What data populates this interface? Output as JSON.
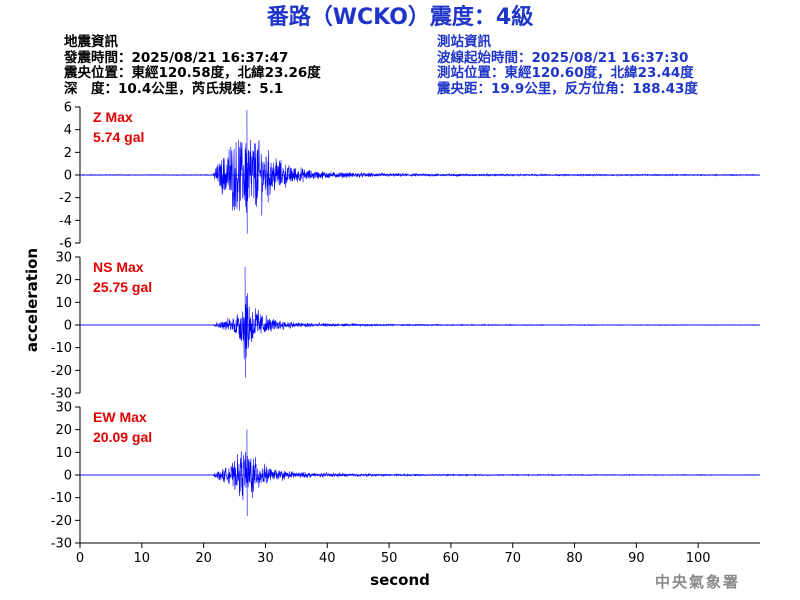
{
  "title": "番路（WCKO）震度：4級",
  "quake_info": {
    "heading": "地震資訊",
    "origin_time": "發震時間：2025/08/21 16:37:47",
    "epicenter": "震央位置：東經120.58度，北緯23.26度",
    "depth_magnitude": "深　度：10.4公里，芮氏規模：5.1"
  },
  "station_info": {
    "heading": "測站資訊",
    "wave_start": "波線起始時間：2025/08/21 16:37:30",
    "location": "測站位置：東經120.60度，北緯23.44度",
    "distance": "震央距：19.9公里，反方位角：188.43度"
  },
  "agency": "中央氣象署",
  "chart_data": [
    {
      "type": "line",
      "channel": "Z",
      "label": "Z Max",
      "max_text": "5.74 gal",
      "peak": 5.74,
      "ylim": [
        -6,
        6
      ],
      "yticks": [
        -6,
        -4,
        -2,
        0,
        2,
        4,
        6
      ],
      "env": [
        [
          0,
          0.05
        ],
        [
          21.5,
          0.05
        ],
        [
          22,
          1.2
        ],
        [
          23,
          2.3
        ],
        [
          24,
          3.5
        ],
        [
          25,
          4.3
        ],
        [
          26,
          4.5
        ],
        [
          27,
          5.7
        ],
        [
          28,
          5.2
        ],
        [
          29,
          4.5
        ],
        [
          30,
          3.5
        ],
        [
          31,
          2.6
        ],
        [
          32,
          2.0
        ],
        [
          33,
          1.5
        ],
        [
          35,
          1.0
        ],
        [
          38,
          0.55
        ],
        [
          42,
          0.35
        ],
        [
          50,
          0.22
        ],
        [
          60,
          0.15
        ],
        [
          75,
          0.1
        ],
        [
          110,
          0.07
        ]
      ]
    },
    {
      "type": "line",
      "channel": "NS",
      "label": "NS Max",
      "max_text": "25.75 gal",
      "peak": 25.75,
      "ylim": [
        -30,
        30
      ],
      "yticks": [
        -30,
        -20,
        -10,
        0,
        10,
        20,
        30
      ],
      "env": [
        [
          0,
          0.1
        ],
        [
          21.5,
          0.1
        ],
        [
          22,
          1.5
        ],
        [
          23,
          2.5
        ],
        [
          24,
          4
        ],
        [
          25,
          6
        ],
        [
          26,
          12
        ],
        [
          26.7,
          25.7
        ],
        [
          27.3,
          20
        ],
        [
          28,
          12
        ],
        [
          29,
          10
        ],
        [
          30,
          6
        ],
        [
          31,
          4
        ],
        [
          33,
          2.5
        ],
        [
          35,
          1.8
        ],
        [
          40,
          1.0
        ],
        [
          50,
          0.5
        ],
        [
          60,
          0.35
        ],
        [
          75,
          0.25
        ],
        [
          110,
          0.2
        ]
      ]
    },
    {
      "type": "line",
      "channel": "EW",
      "label": "EW Max",
      "max_text": "20.09 gal",
      "peak": 20.09,
      "ylim": [
        -30,
        30
      ],
      "yticks": [
        -30,
        -20,
        -10,
        0,
        10,
        20,
        30
      ],
      "env": [
        [
          0,
          0.1
        ],
        [
          21.5,
          0.1
        ],
        [
          22,
          2
        ],
        [
          23,
          3.5
        ],
        [
          24,
          5.5
        ],
        [
          25,
          8
        ],
        [
          26,
          14
        ],
        [
          27,
          20
        ],
        [
          28,
          12
        ],
        [
          29,
          9
        ],
        [
          30,
          6
        ],
        [
          31,
          4
        ],
        [
          33,
          3
        ],
        [
          35,
          2
        ],
        [
          40,
          1.2
        ],
        [
          50,
          0.6
        ],
        [
          60,
          0.4
        ],
        [
          75,
          0.3
        ],
        [
          110,
          0.2
        ]
      ]
    }
  ],
  "x_axis": {
    "label": "second",
    "xlim": [
      0,
      110
    ],
    "ticks": [
      0,
      10,
      20,
      30,
      40,
      50,
      60,
      70,
      80,
      90,
      100
    ]
  },
  "y_axis_label": "acceleration",
  "colors": {
    "title": "#1f35c8",
    "trace": "#0000ff",
    "label": "#e00000",
    "info_right": "#1f35c8",
    "agency": "#8a8a8a"
  }
}
